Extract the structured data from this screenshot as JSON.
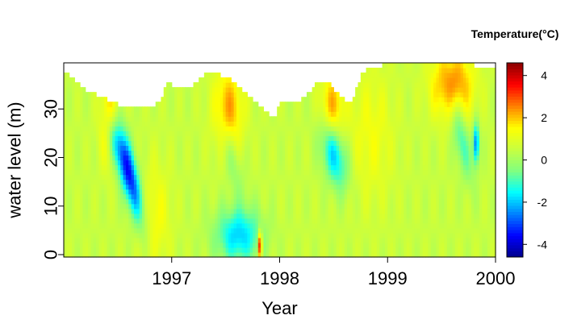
{
  "chart_data": {
    "type": "heatmap",
    "title": "",
    "xlabel": "Year",
    "ylabel": "water level (m)",
    "xlim": [
      1996.0,
      2000.0
    ],
    "ylim": [
      -0.5,
      39.5
    ],
    "x_ticks": [
      1997,
      1998,
      1999,
      2000
    ],
    "x_tick_labels": [
      "1997",
      "1998",
      "1999",
      "2000"
    ],
    "y_ticks": [
      0,
      10,
      20,
      30
    ],
    "y_tick_labels": [
      "0",
      "10",
      "20",
      "30"
    ],
    "colorbar": {
      "title": "Temperature(°C)",
      "range": [
        -4.6,
        4.6
      ],
      "ticks": [
        4,
        2,
        0,
        -2,
        -4
      ],
      "tick_labels": [
        "4",
        "2",
        "0",
        "-2",
        "-4"
      ],
      "colors": [
        "#00008b",
        "#0000ff",
        "#0080ff",
        "#00ffff",
        "#80ff80",
        "#c8ff40",
        "#ffff00",
        "#ff8000",
        "#ff0000",
        "#8b0000"
      ]
    },
    "surface_level": [
      [
        1996.0,
        37.5
      ],
      [
        1996.05,
        37
      ],
      [
        1996.1,
        36
      ],
      [
        1996.15,
        35
      ],
      [
        1996.2,
        34
      ],
      [
        1996.3,
        33
      ],
      [
        1996.4,
        32
      ],
      [
        1996.5,
        31
      ],
      [
        1996.6,
        30
      ],
      [
        1996.7,
        30.5
      ],
      [
        1996.8,
        30.5
      ],
      [
        1996.9,
        31.5
      ],
      [
        1996.95,
        35
      ],
      [
        1997.0,
        35
      ],
      [
        1997.1,
        34
      ],
      [
        1997.2,
        35
      ],
      [
        1997.3,
        37
      ],
      [
        1997.35,
        37
      ],
      [
        1997.37,
        37.5
      ],
      [
        1997.45,
        37
      ],
      [
        1997.55,
        36
      ],
      [
        1997.65,
        34
      ],
      [
        1997.75,
        32
      ],
      [
        1997.85,
        30
      ],
      [
        1997.95,
        28
      ],
      [
        1998.0,
        31
      ],
      [
        1998.05,
        32
      ],
      [
        1998.1,
        31.5
      ],
      [
        1998.2,
        32
      ],
      [
        1998.3,
        34
      ],
      [
        1998.35,
        35.5
      ],
      [
        1998.45,
        35.5
      ],
      [
        1998.55,
        33
      ],
      [
        1998.65,
        31
      ],
      [
        1998.7,
        33
      ],
      [
        1998.75,
        37
      ],
      [
        1998.8,
        38
      ],
      [
        1998.95,
        39
      ],
      [
        1999.1,
        39.5
      ],
      [
        1999.3,
        39.5
      ],
      [
        1999.55,
        39.5
      ],
      [
        1999.7,
        39.5
      ],
      [
        1999.8,
        39
      ],
      [
        1999.9,
        38
      ],
      [
        1999.95,
        38.5
      ],
      [
        2000.0,
        38.5
      ]
    ],
    "features": [
      {
        "x": 1996.42,
        "y": 28,
        "sx": 0.06,
        "sy": 6,
        "value": 2.0,
        "drift": 0
      },
      {
        "x": 1996.6,
        "y": 17,
        "sx": 0.06,
        "sy": 7,
        "value": -4.0,
        "drift": -0.05
      },
      {
        "x": 1996.45,
        "y": 24,
        "sx": 0.05,
        "sy": 4,
        "value": -1.5,
        "drift": -0.04
      },
      {
        "x": 1997.52,
        "y": 30,
        "sx": 0.1,
        "sy": 6,
        "value": 1.8,
        "drift": 0
      },
      {
        "x": 1997.62,
        "y": 4,
        "sx": 0.15,
        "sy": 4,
        "value": -2.4,
        "drift": 0
      },
      {
        "x": 1997.55,
        "y": 20,
        "sx": 0.06,
        "sy": 6,
        "value": -0.8,
        "drift": -0.05
      },
      {
        "x": 1998.48,
        "y": 30,
        "sx": 0.08,
        "sy": 5,
        "value": 1.8,
        "drift": 0
      },
      {
        "x": 1998.5,
        "y": 21,
        "sx": 0.08,
        "sy": 5,
        "value": -2.6,
        "drift": -0.04
      },
      {
        "x": 1999.6,
        "y": 35,
        "sx": 0.14,
        "sy": 5,
        "value": 2.1,
        "drift": 0
      },
      {
        "x": 1999.68,
        "y": 24,
        "sx": 0.05,
        "sy": 6,
        "value": -1.6,
        "drift": -0.04
      },
      {
        "x": 1999.82,
        "y": 23,
        "sx": 0.02,
        "sy": 3,
        "value": -3.2,
        "drift": 0
      },
      {
        "x": 1997.82,
        "y": 2,
        "sx": 0.012,
        "sy": 2,
        "value": 4.2,
        "drift": 0
      },
      {
        "x": 1996.85,
        "y": 8,
        "sx": 0.1,
        "sy": 8,
        "value": 0.9,
        "drift": 0
      },
      {
        "x": 1998.85,
        "y": 25,
        "sx": 0.15,
        "sy": 10,
        "value": 0.8,
        "drift": 0
      }
    ]
  }
}
